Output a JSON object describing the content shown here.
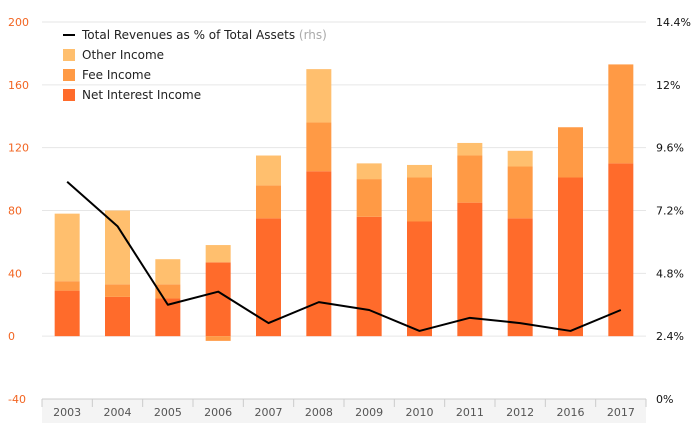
{
  "chart_data": {
    "type": "bar",
    "stacked": true,
    "categories": [
      "2003",
      "2004",
      "2005",
      "2006",
      "2007",
      "2008",
      "2009",
      "2010",
      "2011",
      "2012",
      "2016",
      "2017"
    ],
    "series": [
      {
        "name": "Net Interest Income",
        "axis": "left",
        "color": "#ff6b2b",
        "values": [
          29,
          25,
          24,
          47,
          75,
          105,
          76,
          73,
          85,
          75,
          101,
          110
        ]
      },
      {
        "name": "Fee Income",
        "axis": "left",
        "color": "#ff9a45",
        "values": [
          6,
          8,
          9,
          -3,
          21,
          31,
          24,
          28,
          30,
          33,
          32,
          63
        ]
      },
      {
        "name": "Other Income",
        "axis": "left",
        "color": "#ffbf6e",
        "values": [
          43,
          47,
          16,
          11,
          19,
          34,
          10,
          8,
          8,
          10,
          0,
          0
        ]
      },
      {
        "name": "Total Revenues as % of Total Assets",
        "axis": "right",
        "type": "line",
        "color": "#000000",
        "values": [
          8.3,
          6.6,
          3.6,
          4.1,
          2.9,
          3.7,
          3.4,
          2.6,
          3.1,
          2.9,
          2.6,
          3.4
        ]
      }
    ],
    "legend": {
      "position": "top-left",
      "entries": [
        {
          "label": "Total Revenues as % of Total Assets",
          "suffix": "(rhs)",
          "kind": "line",
          "color": "#000000"
        },
        {
          "label": "Other Income",
          "kind": "box",
          "color": "#ffbf6e"
        },
        {
          "label": "Fee Income",
          "kind": "box",
          "color": "#ff9a45"
        },
        {
          "label": "Net Interest Income",
          "kind": "box",
          "color": "#ff6b2b"
        }
      ]
    },
    "left_axis": {
      "ylim": [
        -40,
        200
      ],
      "ticks": [
        "200",
        "160",
        "120",
        "80",
        "40",
        "0",
        "-40"
      ],
      "color": "#f26522"
    },
    "right_axis": {
      "ylim": [
        0,
        14.4
      ],
      "ticks": [
        "14.4%",
        "12%",
        "9.6%",
        "7.2%",
        "4.8%",
        "2.4%",
        "0%"
      ]
    },
    "grid": true
  }
}
